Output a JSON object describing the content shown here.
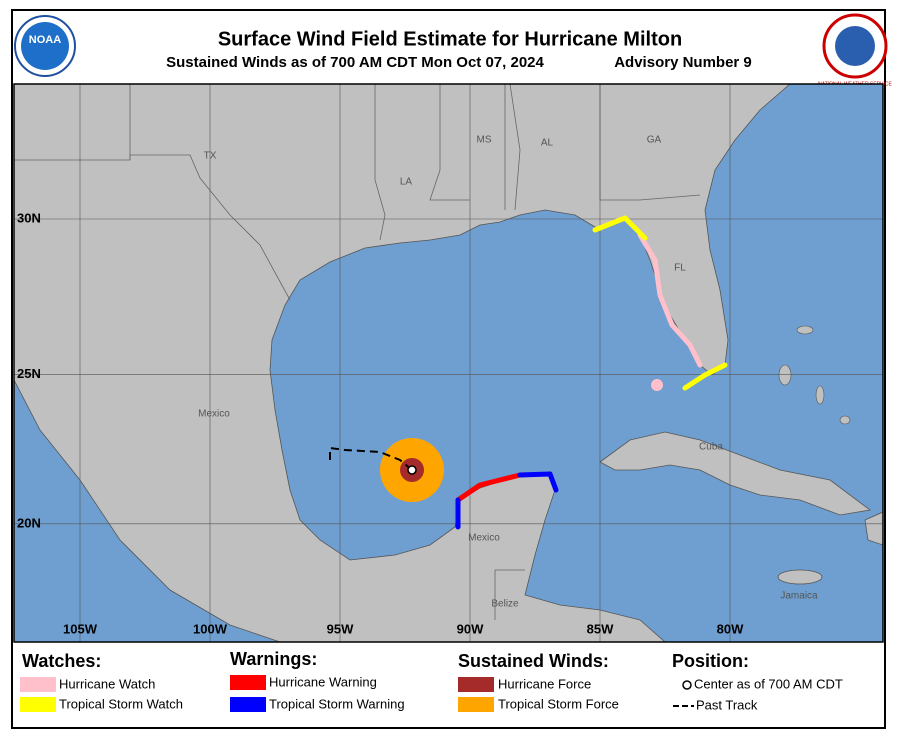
{
  "header": {
    "title": "Surface Wind Field Estimate for Hurricane Milton",
    "subtitle": "Sustained Winds as of 700 AM CDT Mon Oct 07, 2024",
    "advisory": "Advisory Number 9",
    "logos": [
      "NOAA",
      "NATIONAL WEATHER SERVICE"
    ]
  },
  "map": {
    "latitudes": [
      {
        "value": 30,
        "label": "30N"
      },
      {
        "value": 25,
        "label": "25N"
      },
      {
        "value": 20,
        "label": "20N"
      }
    ],
    "longitudes": [
      {
        "value": -105,
        "label": "105W"
      },
      {
        "value": -100,
        "label": "100W"
      },
      {
        "value": -95,
        "label": "95W"
      },
      {
        "value": -90,
        "label": "90W"
      },
      {
        "value": -85,
        "label": "85W"
      },
      {
        "value": -80,
        "label": "80W"
      }
    ],
    "places": [
      "TX",
      "LA",
      "MS",
      "AL",
      "GA",
      "FL",
      "Mexico",
      "Mexico",
      "Cuba",
      "Belize",
      "Jamaica"
    ]
  },
  "legend": {
    "watches": {
      "title": "Watches:",
      "items": [
        {
          "label": "Hurricane Watch",
          "color": "#ffc0cb"
        },
        {
          "label": "Tropical Storm Watch",
          "color": "#ffff00"
        }
      ]
    },
    "warnings": {
      "title": "Warnings:",
      "items": [
        {
          "label": "Hurricane Warning",
          "color": "#ff0000"
        },
        {
          "label": "Tropical Storm Warning",
          "color": "#0000ff"
        }
      ]
    },
    "winds": {
      "title": "Sustained Winds:",
      "items": [
        {
          "label": "Hurricane Force",
          "color": "#a52a2a"
        },
        {
          "label": "Tropical Storm Force",
          "color": "#ffa500"
        }
      ]
    },
    "position": {
      "title": "Position:",
      "items": [
        {
          "label": "Center as of 700 AM CDT"
        },
        {
          "label": "Past Track"
        }
      ]
    }
  }
}
